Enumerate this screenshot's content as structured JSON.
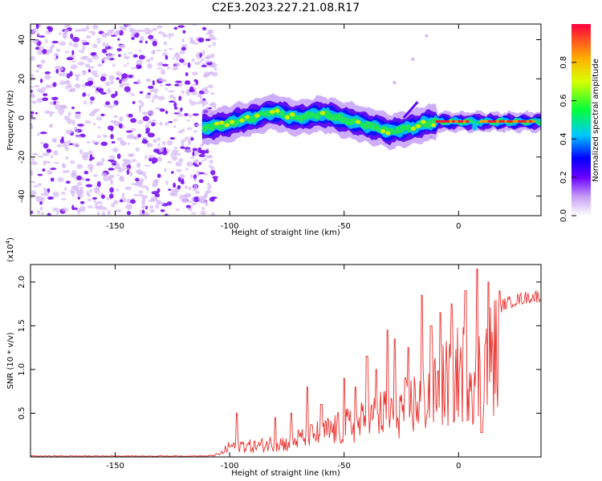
{
  "figure_title": "C2E3.2023.227.21.08.R17",
  "colors": {
    "spectrum_purple": "#7a12f0",
    "spectrum_light": "#d6b8f6",
    "snr_line": "#e8302c"
  },
  "chart_data": [
    {
      "type": "heatmap",
      "xlabel": "Height of straight line (km)",
      "ylabel": "Frequency (Hz)",
      "xlim": [
        -187,
        36
      ],
      "ylim": [
        -50,
        48
      ],
      "xticks": [
        -150,
        -100,
        -50,
        0
      ],
      "yticks": [
        -40,
        -20,
        0,
        20,
        40
      ],
      "colorbar": {
        "label": "Normalized spectral amplitude",
        "range": [
          0,
          1
        ],
        "ticks": [
          "0.0",
          "0.2",
          "0.4",
          "0.6",
          "0.8"
        ],
        "tick_values": [
          0.0,
          0.2,
          0.4,
          0.6,
          0.8
        ]
      },
      "ridge": {
        "x": [
          -112,
          -105,
          -100,
          -95,
          -90,
          -85,
          -80,
          -75,
          -70,
          -65,
          -60,
          -55,
          -50,
          -45,
          -40,
          -35,
          -30,
          -25,
          -20,
          -15,
          -10,
          -5,
          0,
          5,
          10,
          15,
          20,
          25,
          30,
          36
        ],
        "freq": [
          -5,
          -4,
          -3,
          -1,
          0,
          2,
          3,
          1,
          0,
          1,
          2,
          1,
          -1,
          -2,
          -4,
          -5,
          -7,
          -6,
          -5,
          -3,
          -2,
          -2,
          -2,
          -2,
          -2,
          -2,
          -2,
          -2,
          -2,
          -2
        ]
      },
      "noise_region_x": [
        -187,
        -112
      ]
    },
    {
      "type": "line",
      "xlabel": "Height of straight line (km)",
      "ylabel": "SNR (10 * v/v)",
      "y_multiplier": "(x10",
      "y_multiplier_exp": "4",
      "y_multiplier_close": ")",
      "xlim": [
        -187,
        36
      ],
      "ylim": [
        0,
        2.2
      ],
      "xticks": [
        -150,
        -100,
        -50,
        0
      ],
      "yticks": [
        0.5,
        1.0,
        1.5,
        2.0
      ],
      "ytick_labels": [
        "0.5",
        "1.0",
        "1.5",
        "2.0"
      ],
      "envelope": {
        "x": [
          -187,
          -110,
          -104,
          -100,
          -95,
          -90,
          -85,
          -80,
          -75,
          -70,
          -65,
          -60,
          -55,
          -50,
          -45,
          -40,
          -35,
          -30,
          -25,
          -20,
          -15,
          -10,
          -5,
          0,
          5,
          8,
          10,
          15,
          20,
          25,
          30,
          36
        ],
        "y": [
          0.01,
          0.01,
          0.05,
          0.18,
          0.2,
          0.18,
          0.2,
          0.25,
          0.22,
          0.3,
          0.35,
          0.4,
          0.45,
          0.5,
          0.55,
          0.6,
          0.7,
          0.75,
          0.8,
          0.9,
          1.0,
          1.1,
          1.25,
          1.4,
          1.55,
          1.2,
          1.6,
          1.7,
          1.8,
          1.85,
          1.88,
          1.9
        ]
      },
      "peaks": [
        {
          "x": -97,
          "y": 0.5
        },
        {
          "x": -80,
          "y": 0.45
        },
        {
          "x": -73,
          "y": 0.5
        },
        {
          "x": -66,
          "y": 0.8
        },
        {
          "x": -60,
          "y": 0.6
        },
        {
          "x": -50,
          "y": 0.9
        },
        {
          "x": -45,
          "y": 0.8
        },
        {
          "x": -40,
          "y": 1.15
        },
        {
          "x": -36,
          "y": 1.0
        },
        {
          "x": -31,
          "y": 1.45
        },
        {
          "x": -28,
          "y": 1.35
        },
        {
          "x": -22,
          "y": 1.25
        },
        {
          "x": -16,
          "y": 1.85
        },
        {
          "x": -12,
          "y": 1.5
        },
        {
          "x": -8,
          "y": 1.65
        },
        {
          "x": -3,
          "y": 1.75
        },
        {
          "x": 3,
          "y": 1.9
        },
        {
          "x": 8,
          "y": 2.15
        },
        {
          "x": 13,
          "y": 2.0
        },
        {
          "x": 18,
          "y": 1.9
        }
      ],
      "dip": {
        "x": 10,
        "y": 0.28
      }
    }
  ]
}
